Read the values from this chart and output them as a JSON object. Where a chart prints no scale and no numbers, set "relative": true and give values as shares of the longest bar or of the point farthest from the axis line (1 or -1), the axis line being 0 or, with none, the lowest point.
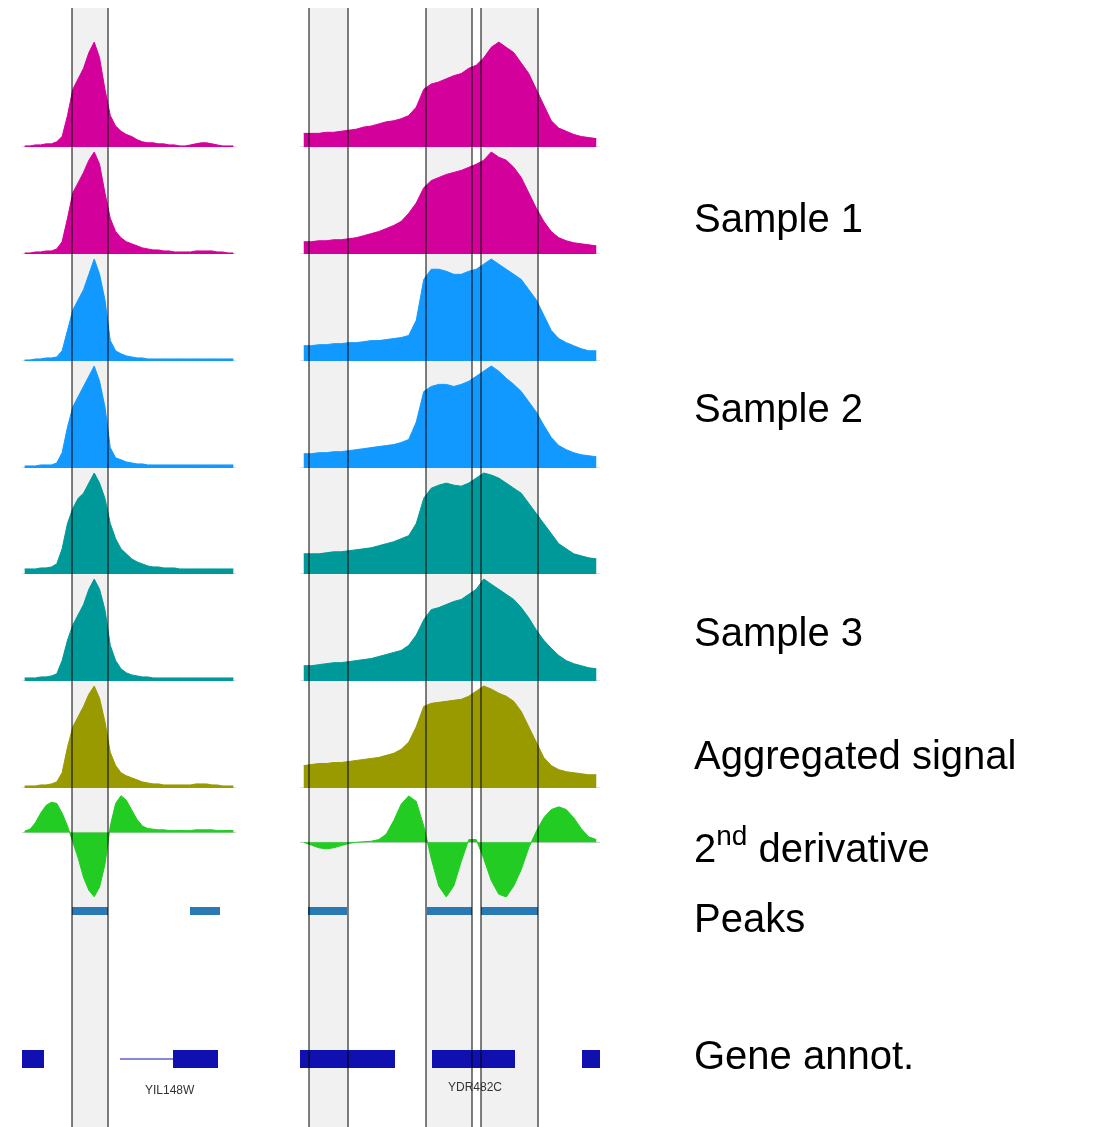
{
  "chart_data": [
    {
      "type": "area",
      "relative": true,
      "color": "#d4009b",
      "categories": [
        null,
        null,
        null,
        null,
        null,
        null,
        null,
        null,
        null,
        null,
        null,
        null,
        null,
        null,
        null,
        null,
        null,
        null,
        null,
        null,
        null,
        null,
        null,
        null,
        null,
        null,
        null,
        null,
        null,
        null,
        null,
        null,
        null,
        null,
        null,
        null,
        null,
        null,
        null,
        null
      ],
      "values": [
        0.01,
        0.01,
        0.02,
        0.02,
        0.03,
        0.03,
        0.05,
        0.1,
        0.3,
        0.55,
        0.65,
        0.75,
        0.9,
        1,
        0.85,
        0.55,
        0.3,
        0.2,
        0.15,
        0.12,
        0.1,
        0.07,
        0.05,
        0.04,
        0.04,
        0.03,
        0.03,
        0.02,
        0.02,
        0.01,
        0.01,
        0.02,
        0.03,
        0.04,
        0.04,
        0.03,
        0.02,
        0.01,
        0.01,
        0.01
      ]
    },
    {
      "type": "area",
      "relative": true,
      "color": "#d4009b",
      "categories": [
        null,
        null,
        null,
        null,
        null,
        null,
        null,
        null,
        null,
        null,
        null,
        null,
        null,
        null,
        null,
        null,
        null,
        null,
        null,
        null,
        null,
        null,
        null,
        null,
        null,
        null,
        null,
        null,
        null,
        null,
        null,
        null,
        null,
        null,
        null,
        null,
        null,
        null,
        null,
        null
      ],
      "values": [
        0.01,
        0.01,
        0.02,
        0.02,
        0.03,
        0.03,
        0.05,
        0.12,
        0.35,
        0.6,
        0.7,
        0.8,
        0.92,
        1,
        0.88,
        0.6,
        0.35,
        0.22,
        0.16,
        0.12,
        0.1,
        0.08,
        0.06,
        0.05,
        0.04,
        0.04,
        0.03,
        0.03,
        0.02,
        0.02,
        0.02,
        0.02,
        0.03,
        0.03,
        0.03,
        0.03,
        0.02,
        0.02,
        0.01,
        0.01
      ]
    },
    {
      "type": "area",
      "relative": true,
      "color": "#1199ff",
      "categories": [
        null,
        null,
        null,
        null,
        null,
        null,
        null,
        null,
        null,
        null,
        null,
        null,
        null,
        null,
        null,
        null,
        null,
        null,
        null,
        null,
        null,
        null,
        null,
        null,
        null,
        null,
        null,
        null,
        null,
        null,
        null,
        null,
        null,
        null,
        null,
        null,
        null,
        null,
        null,
        null
      ],
      "values": [
        0.01,
        0.01,
        0.02,
        0.02,
        0.03,
        0.03,
        0.04,
        0.1,
        0.3,
        0.5,
        0.6,
        0.7,
        0.85,
        1,
        0.85,
        0.6,
        0.2,
        0.1,
        0.07,
        0.05,
        0.04,
        0.03,
        0.03,
        0.02,
        0.02,
        0.02,
        0.02,
        0.02,
        0.02,
        0.02,
        0.02,
        0.02,
        0.02,
        0.02,
        0.02,
        0.02,
        0.02,
        0.02,
        0.02,
        0.02
      ]
    },
    {
      "type": "area",
      "relative": true,
      "color": "#1199ff",
      "categories": [
        null,
        null,
        null,
        null,
        null,
        null,
        null,
        null,
        null,
        null,
        null,
        null,
        null,
        null,
        null,
        null,
        null,
        null,
        null,
        null,
        null,
        null,
        null,
        null,
        null,
        null,
        null,
        null,
        null,
        null,
        null,
        null,
        null,
        null,
        null,
        null,
        null,
        null,
        null,
        null
      ],
      "values": [
        0.02,
        0.02,
        0.02,
        0.03,
        0.03,
        0.03,
        0.05,
        0.15,
        0.4,
        0.6,
        0.7,
        0.8,
        0.9,
        1,
        0.85,
        0.6,
        0.2,
        0.1,
        0.08,
        0.06,
        0.05,
        0.04,
        0.04,
        0.03,
        0.03,
        0.03,
        0.03,
        0.03,
        0.03,
        0.03,
        0.03,
        0.03,
        0.03,
        0.03,
        0.03,
        0.03,
        0.03,
        0.03,
        0.03,
        0.03
      ]
    },
    {
      "type": "area",
      "relative": true,
      "color": "#009999",
      "categories": [
        null,
        null,
        null,
        null,
        null,
        null,
        null,
        null,
        null,
        null,
        null,
        null,
        null,
        null,
        null,
        null,
        null,
        null,
        null,
        null,
        null,
        null,
        null,
        null,
        null,
        null,
        null,
        null,
        null,
        null,
        null,
        null,
        null,
        null,
        null,
        null,
        null,
        null,
        null,
        null
      ],
      "values": [
        0.05,
        0.05,
        0.05,
        0.06,
        0.06,
        0.07,
        0.1,
        0.25,
        0.5,
        0.65,
        0.75,
        0.8,
        0.9,
        1,
        0.9,
        0.75,
        0.5,
        0.35,
        0.25,
        0.2,
        0.15,
        0.12,
        0.1,
        0.08,
        0.07,
        0.07,
        0.06,
        0.06,
        0.06,
        0.05,
        0.05,
        0.05,
        0.05,
        0.05,
        0.05,
        0.05,
        0.05,
        0.05,
        0.05,
        0.05
      ]
    },
    {
      "type": "area",
      "relative": true,
      "color": "#009999",
      "categories": [
        null,
        null,
        null,
        null,
        null,
        null,
        null,
        null,
        null,
        null,
        null,
        null,
        null,
        null,
        null,
        null,
        null,
        null,
        null,
        null,
        null,
        null,
        null,
        null,
        null,
        null,
        null,
        null,
        null,
        null,
        null,
        null,
        null,
        null,
        null,
        null,
        null,
        null,
        null,
        null
      ],
      "values": [
        0.03,
        0.03,
        0.03,
        0.04,
        0.04,
        0.05,
        0.07,
        0.2,
        0.4,
        0.55,
        0.65,
        0.75,
        0.9,
        1,
        0.9,
        0.7,
        0.35,
        0.2,
        0.12,
        0.08,
        0.06,
        0.05,
        0.04,
        0.04,
        0.03,
        0.03,
        0.03,
        0.03,
        0.03,
        0.03,
        0.03,
        0.03,
        0.03,
        0.03,
        0.03,
        0.03,
        0.03,
        0.03,
        0.03,
        0.03
      ]
    },
    {
      "type": "area",
      "relative": true,
      "color": "#999900",
      "categories": [
        null,
        null,
        null,
        null,
        null,
        null,
        null,
        null,
        null,
        null,
        null,
        null,
        null,
        null,
        null,
        null,
        null,
        null,
        null,
        null,
        null,
        null,
        null,
        null,
        null,
        null,
        null,
        null,
        null,
        null,
        null,
        null,
        null,
        null,
        null,
        null,
        null,
        null,
        null,
        null
      ],
      "values": [
        0.02,
        0.02,
        0.02,
        0.03,
        0.03,
        0.04,
        0.06,
        0.15,
        0.4,
        0.6,
        0.7,
        0.8,
        0.92,
        1,
        0.88,
        0.65,
        0.35,
        0.22,
        0.15,
        0.12,
        0.1,
        0.08,
        0.06,
        0.05,
        0.04,
        0.04,
        0.03,
        0.03,
        0.03,
        0.03,
        0.03,
        0.03,
        0.04,
        0.04,
        0.04,
        0.03,
        0.03,
        0.02,
        0.02,
        0.02
      ]
    },
    {
      "type": "area",
      "relative": true,
      "color": "#22cc22",
      "categories": [
        null,
        null,
        null,
        null,
        null,
        null,
        null,
        null,
        null,
        null,
        null,
        null,
        null,
        null,
        null,
        null,
        null,
        null,
        null,
        null,
        null,
        null,
        null,
        null,
        null,
        null,
        null,
        null,
        null,
        null,
        null,
        null,
        null,
        null,
        null,
        null,
        null,
        null,
        null,
        null
      ],
      "values": [
        0.02,
        0.05,
        0.15,
        0.3,
        0.42,
        0.47,
        0.45,
        0.3,
        0.1,
        -0.15,
        -0.4,
        -0.7,
        -0.9,
        -1,
        -0.85,
        -0.5,
        0.1,
        0.45,
        0.57,
        0.5,
        0.35,
        0.2,
        0.1,
        0.06,
        0.05,
        0.04,
        0.04,
        0.03,
        0.03,
        0.03,
        0.03,
        0.03,
        0.04,
        0.04,
        0.04,
        0.04,
        0.03,
        0.03,
        0.03,
        0.03
      ]
    },
    {
      "type": "area",
      "relative": true,
      "color": "#d4009b",
      "categories": [
        null,
        null,
        null,
        null,
        null,
        null,
        null,
        null,
        null,
        null,
        null,
        null,
        null,
        null,
        null,
        null,
        null,
        null,
        null,
        null,
        null,
        null,
        null,
        null,
        null,
        null,
        null,
        null,
        null,
        null,
        null,
        null,
        null,
        null,
        null,
        null,
        null,
        null,
        null,
        null
      ],
      "values": [
        0.13,
        0.13,
        0.13,
        0.14,
        0.14,
        0.15,
        0.16,
        0.17,
        0.19,
        0.2,
        0.22,
        0.24,
        0.25,
        0.27,
        0.3,
        0.38,
        0.55,
        0.6,
        0.62,
        0.65,
        0.68,
        0.7,
        0.75,
        0.78,
        0.85,
        0.95,
        1,
        0.95,
        0.9,
        0.8,
        0.7,
        0.55,
        0.4,
        0.25,
        0.18,
        0.15,
        0.12,
        0.1,
        0.09,
        0.08
      ]
    },
    {
      "type": "area",
      "relative": true,
      "color": "#d4009b",
      "categories": [
        null,
        null,
        null,
        null,
        null,
        null,
        null,
        null,
        null,
        null,
        null,
        null,
        null,
        null,
        null,
        null,
        null,
        null,
        null,
        null,
        null,
        null,
        null,
        null,
        null,
        null,
        null,
        null,
        null,
        null,
        null,
        null,
        null,
        null,
        null,
        null,
        null,
        null,
        null,
        null
      ],
      "values": [
        0.12,
        0.12,
        0.13,
        0.13,
        0.14,
        0.14,
        0.15,
        0.16,
        0.18,
        0.2,
        0.22,
        0.25,
        0.28,
        0.32,
        0.4,
        0.5,
        0.65,
        0.72,
        0.75,
        0.78,
        0.8,
        0.82,
        0.85,
        0.88,
        0.92,
        1,
        0.95,
        0.92,
        0.85,
        0.75,
        0.6,
        0.45,
        0.32,
        0.22,
        0.16,
        0.13,
        0.11,
        0.1,
        0.09,
        0.08
      ]
    },
    {
      "type": "area",
      "relative": true,
      "color": "#1199ff",
      "categories": [
        null,
        null,
        null,
        null,
        null,
        null,
        null,
        null,
        null,
        null,
        null,
        null,
        null,
        null,
        null,
        null,
        null,
        null,
        null,
        null,
        null,
        null,
        null,
        null,
        null,
        null,
        null,
        null,
        null,
        null,
        null,
        null,
        null,
        null,
        null,
        null,
        null,
        null,
        null,
        null
      ],
      "values": [
        0.15,
        0.15,
        0.16,
        0.16,
        0.17,
        0.17,
        0.18,
        0.18,
        0.19,
        0.2,
        0.2,
        0.21,
        0.22,
        0.23,
        0.25,
        0.4,
        0.8,
        0.9,
        0.9,
        0.88,
        0.85,
        0.85,
        0.88,
        0.9,
        0.95,
        1,
        0.95,
        0.9,
        0.85,
        0.8,
        0.7,
        0.6,
        0.45,
        0.3,
        0.22,
        0.18,
        0.15,
        0.12,
        0.1,
        0.1
      ]
    },
    {
      "type": "area",
      "relative": true,
      "color": "#1199ff",
      "categories": [
        null,
        null,
        null,
        null,
        null,
        null,
        null,
        null,
        null,
        null,
        null,
        null,
        null,
        null,
        null,
        null,
        null,
        null,
        null,
        null,
        null,
        null,
        null,
        null,
        null,
        null,
        null,
        null,
        null,
        null,
        null,
        null,
        null,
        null,
        null,
        null,
        null,
        null,
        null,
        null
      ],
      "values": [
        0.14,
        0.14,
        0.15,
        0.15,
        0.16,
        0.16,
        0.17,
        0.18,
        0.19,
        0.2,
        0.21,
        0.22,
        0.23,
        0.25,
        0.28,
        0.45,
        0.75,
        0.8,
        0.82,
        0.82,
        0.8,
        0.82,
        0.85,
        0.9,
        0.95,
        1,
        0.95,
        0.88,
        0.82,
        0.75,
        0.65,
        0.55,
        0.42,
        0.3,
        0.22,
        0.18,
        0.15,
        0.13,
        0.12,
        0.11
      ]
    },
    {
      "type": "area",
      "relative": true,
      "color": "#009999",
      "categories": [
        null,
        null,
        null,
        null,
        null,
        null,
        null,
        null,
        null,
        null,
        null,
        null,
        null,
        null,
        null,
        null,
        null,
        null,
        null,
        null,
        null,
        null,
        null,
        null,
        null,
        null,
        null,
        null,
        null,
        null,
        null,
        null,
        null,
        null,
        null,
        null,
        null,
        null,
        null,
        null
      ],
      "values": [
        0.2,
        0.2,
        0.2,
        0.21,
        0.22,
        0.22,
        0.23,
        0.24,
        0.25,
        0.26,
        0.28,
        0.3,
        0.32,
        0.35,
        0.38,
        0.5,
        0.75,
        0.85,
        0.88,
        0.9,
        0.88,
        0.87,
        0.9,
        0.95,
        1,
        0.98,
        0.95,
        0.9,
        0.85,
        0.8,
        0.7,
        0.6,
        0.5,
        0.4,
        0.3,
        0.25,
        0.2,
        0.18,
        0.16,
        0.15
      ]
    },
    {
      "type": "area",
      "relative": true,
      "color": "#009999",
      "categories": [
        null,
        null,
        null,
        null,
        null,
        null,
        null,
        null,
        null,
        null,
        null,
        null,
        null,
        null,
        null,
        null,
        null,
        null,
        null,
        null,
        null,
        null,
        null,
        null,
        null,
        null,
        null,
        null,
        null,
        null,
        null,
        null,
        null,
        null,
        null,
        null,
        null,
        null,
        null,
        null
      ],
      "values": [
        0.15,
        0.15,
        0.16,
        0.17,
        0.18,
        0.18,
        0.19,
        0.2,
        0.21,
        0.22,
        0.24,
        0.26,
        0.28,
        0.3,
        0.35,
        0.45,
        0.6,
        0.7,
        0.72,
        0.75,
        0.78,
        0.8,
        0.85,
        0.9,
        1,
        0.95,
        0.9,
        0.85,
        0.8,
        0.72,
        0.62,
        0.5,
        0.4,
        0.32,
        0.25,
        0.2,
        0.17,
        0.15,
        0.13,
        0.12
      ]
    },
    {
      "type": "area",
      "relative": true,
      "color": "#999900",
      "categories": [
        null,
        null,
        null,
        null,
        null,
        null,
        null,
        null,
        null,
        null,
        null,
        null,
        null,
        null,
        null,
        null,
        null,
        null,
        null,
        null,
        null,
        null,
        null,
        null,
        null,
        null,
        null,
        null,
        null,
        null,
        null,
        null,
        null,
        null,
        null,
        null,
        null,
        null,
        null,
        null
      ],
      "values": [
        0.22,
        0.23,
        0.24,
        0.24,
        0.25,
        0.25,
        0.26,
        0.27,
        0.28,
        0.29,
        0.3,
        0.32,
        0.34,
        0.38,
        0.45,
        0.6,
        0.8,
        0.83,
        0.84,
        0.85,
        0.86,
        0.87,
        0.9,
        0.95,
        1,
        0.97,
        0.93,
        0.9,
        0.85,
        0.75,
        0.6,
        0.45,
        0.3,
        0.22,
        0.18,
        0.16,
        0.15,
        0.14,
        0.13,
        0.13
      ]
    },
    {
      "type": "area",
      "relative": true,
      "color": "#22cc22",
      "categories": [
        null,
        null,
        null,
        null,
        null,
        null,
        null,
        null,
        null,
        null,
        null,
        null,
        null,
        null,
        null,
        null,
        null,
        null,
        null,
        null,
        null,
        null,
        null,
        null,
        null,
        null,
        null,
        null,
        null,
        null,
        null,
        null,
        null,
        null,
        null,
        null,
        null,
        null,
        null,
        null
      ],
      "values": [
        0,
        -0.05,
        -0.1,
        -0.12,
        -0.1,
        -0.06,
        -0.02,
        0,
        0.01,
        0.02,
        0.05,
        0.15,
        0.4,
        0.7,
        0.85,
        0.75,
        0.3,
        -0.3,
        -0.8,
        -1,
        -0.8,
        -0.35,
        0.05,
        0.05,
        -0.3,
        -0.7,
        -0.95,
        -1,
        -0.8,
        -0.5,
        -0.1,
        0.2,
        0.45,
        0.6,
        0.65,
        0.6,
        0.45,
        0.25,
        0.1,
        0.05
      ]
    },
    {
      "type": "other",
      "annotations": [
        "Sample 1",
        "Sample 2",
        "Sample 3",
        "Aggregated signal",
        "2$^{nd}$ derivative",
        "Peaks",
        "Gene annot."
      ]
    },
    {
      "type": "other",
      "annotations": [
        "YIL148W",
        "YDR482C"
      ]
    }
  ]
}
